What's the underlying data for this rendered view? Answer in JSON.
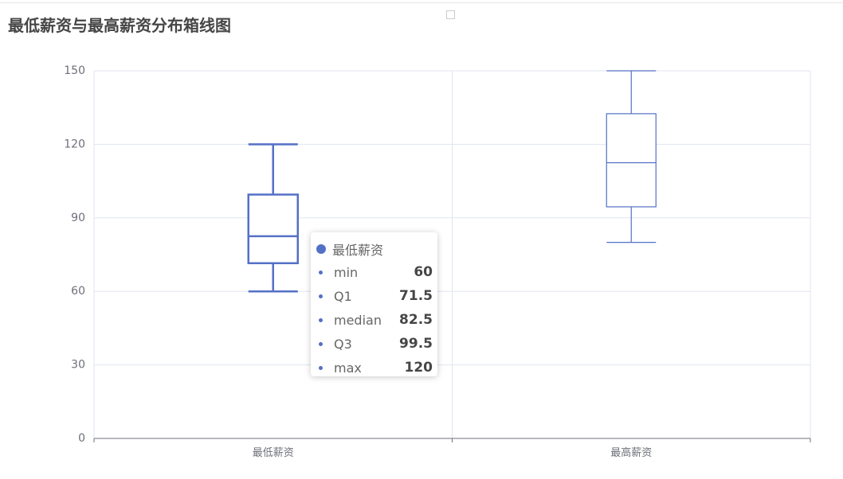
{
  "title": "最低薪资与最高薪资分布箱线图",
  "colors": {
    "series": "#5470c6",
    "axis": "#6e7079",
    "grid": "#e0e6f1",
    "label": "#6e7079"
  },
  "chart_data": {
    "type": "boxplot",
    "categories": [
      "最低薪资",
      "最高薪资"
    ],
    "ylim": [
      0,
      150
    ],
    "yticks": [
      0,
      30,
      60,
      90,
      120,
      150
    ],
    "grid": true,
    "series": [
      {
        "data": [
          {
            "min": 60,
            "q1": 71.5,
            "median": 82.5,
            "q3": 99.5,
            "max": 120
          },
          {
            "min": 80,
            "q1": 94.5,
            "median": 112.5,
            "q3": 132.5,
            "max": 150
          }
        ]
      }
    ]
  },
  "tooltip": {
    "title": "最低薪资",
    "rows": [
      {
        "label": "min",
        "value": "60"
      },
      {
        "label": "Q1",
        "value": "71.5"
      },
      {
        "label": "median",
        "value": "82.5"
      },
      {
        "label": "Q3",
        "value": "99.5"
      },
      {
        "label": "max",
        "value": "120"
      }
    ]
  }
}
